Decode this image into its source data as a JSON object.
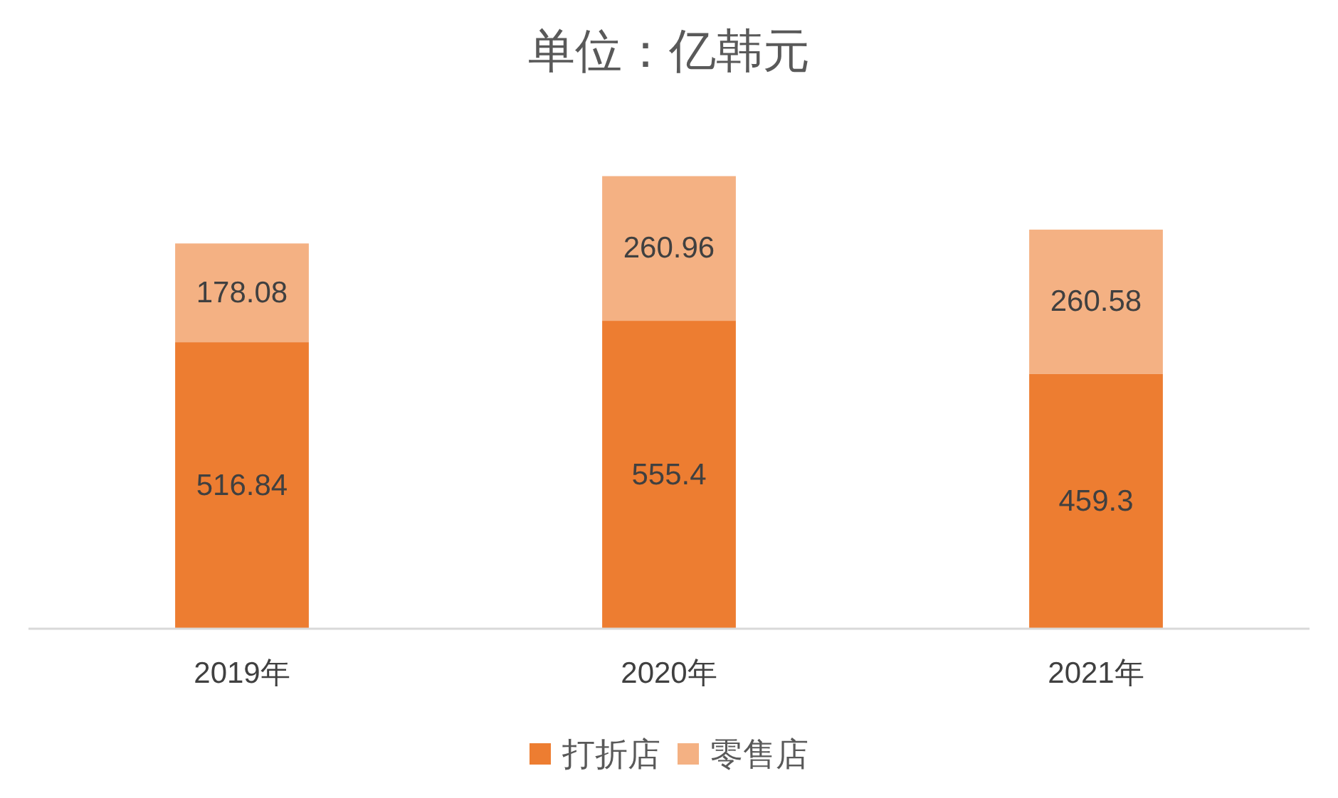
{
  "chart_data": {
    "type": "bar",
    "title": "单位：亿韩元",
    "categories": [
      "2019年",
      "2020年",
      "2021年"
    ],
    "stacked": true,
    "series": [
      {
        "name": "打折店",
        "color": "#ed7d31",
        "values": [
          516.84,
          555.4,
          459.3
        ]
      },
      {
        "name": "零售店",
        "color": "#f4b183",
        "values": [
          178.08,
          260.96,
          260.58
        ]
      }
    ],
    "data_labels": true,
    "legend": "bottom"
  }
}
